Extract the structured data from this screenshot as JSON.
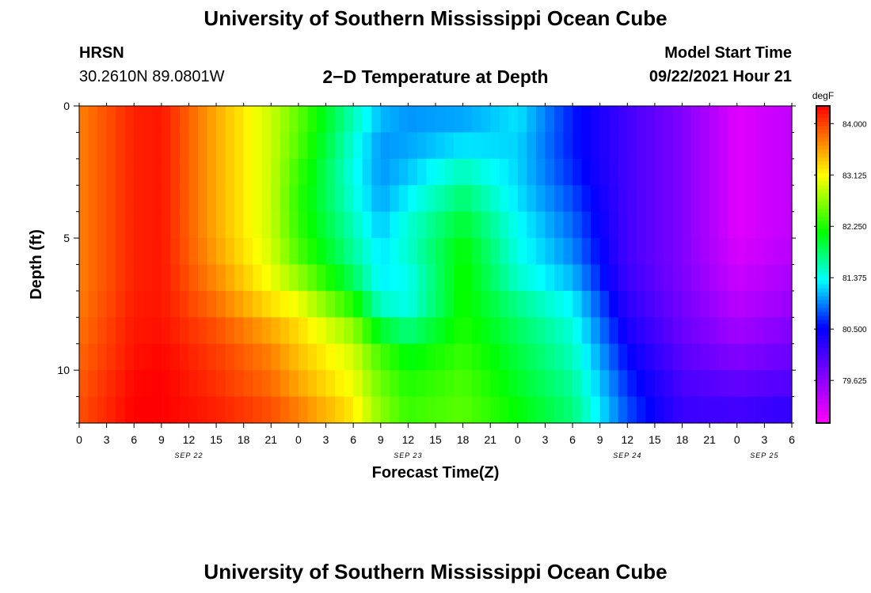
{
  "header": {
    "title": "University of Southern Mississippi Ocean Cube",
    "station": "HRSN",
    "coordinates": "30.2610N  89.0801W",
    "subtitle": "2−D Temperature at Depth",
    "model_start_label": "Model Start Time",
    "model_run": "09/22/2021 Hour 21"
  },
  "footer": {
    "title": "University of Southern Mississippi Ocean Cube"
  },
  "chart_data": {
    "type": "heatmap",
    "xlabel": "Forecast Time(Z)",
    "ylabel": "Depth (ft)",
    "x_hours_start": 0,
    "x_hours_end": 78,
    "y_range": [
      0,
      12
    ],
    "x_tick_labels": [
      "0",
      "3",
      "6",
      "9",
      "12",
      "15",
      "18",
      "21",
      "0",
      "3",
      "6",
      "9",
      "12",
      "15",
      "18",
      "21",
      "0",
      "3",
      "6",
      "9",
      "12",
      "15",
      "18",
      "21",
      "0",
      "3",
      "6"
    ],
    "y_tick_labels": [
      "0",
      "5",
      "10"
    ],
    "date_labels": [
      {
        "label": "SEP 22",
        "hour": 12
      },
      {
        "label": "SEP 23",
        "hour": 36
      },
      {
        "label": "SEP 24",
        "hour": 60
      },
      {
        "label": "SEP 25",
        "hour": 75
      }
    ],
    "colorbar": {
      "unit": "degF",
      "min": 78.9,
      "max": 84.3,
      "tick_values": [
        84.0,
        83.125,
        82.25,
        81.375,
        80.5,
        79.625
      ],
      "tick_labels": [
        "84.000",
        "83.125",
        "82.250",
        "81.375",
        "80.500",
        "79.625"
      ]
    },
    "depth_levels": [
      0,
      1,
      2,
      3,
      4,
      5,
      6,
      7,
      8,
      9,
      10,
      11,
      12
    ],
    "profile_hours": [
      0,
      6,
      9,
      15,
      21,
      24,
      30,
      33,
      36,
      42,
      48,
      54,
      60,
      66,
      72,
      78
    ],
    "temperature_profiles": [
      [
        83.7,
        83.7,
        83.7,
        83.7,
        83.7,
        83.7,
        83.7,
        83.7,
        83.75,
        83.8,
        83.85,
        83.9,
        83.95
      ],
      [
        84.15,
        84.15,
        84.15,
        84.15,
        84.15,
        84.15,
        84.15,
        84.15,
        84.2,
        84.2,
        84.25,
        84.3,
        84.3
      ],
      [
        84.2,
        84.2,
        84.2,
        84.2,
        84.2,
        84.2,
        84.2,
        84.2,
        84.2,
        84.25,
        84.3,
        84.3,
        84.3
      ],
      [
        83.5,
        83.5,
        83.5,
        83.5,
        83.5,
        83.5,
        83.6,
        83.7,
        83.85,
        84.0,
        84.05,
        84.1,
        84.2
      ],
      [
        82.9,
        82.9,
        82.9,
        82.9,
        82.9,
        82.9,
        83.0,
        83.1,
        83.4,
        83.65,
        83.75,
        83.85,
        84.0
      ],
      [
        82.5,
        82.5,
        82.4,
        82.3,
        82.3,
        82.35,
        82.5,
        82.9,
        83.2,
        83.35,
        83.45,
        83.6,
        83.8
      ],
      [
        81.6,
        81.5,
        81.4,
        81.4,
        81.5,
        81.6,
        81.7,
        82.0,
        82.5,
        82.9,
        83.0,
        83.1,
        83.3
      ],
      [
        81.2,
        81.0,
        81.0,
        81.0,
        81.1,
        81.2,
        81.3,
        81.3,
        81.7,
        82.3,
        82.5,
        82.6,
        82.7
      ],
      [
        81.0,
        81.0,
        81.1,
        81.2,
        81.4,
        81.5,
        81.45,
        81.3,
        81.5,
        82.0,
        82.2,
        82.3,
        82.4
      ],
      [
        81.0,
        81.1,
        81.4,
        81.7,
        81.9,
        82.1,
        82.2,
        82.2,
        82.2,
        82.3,
        82.4,
        82.45,
        82.5
      ],
      [
        81.3,
        81.2,
        81.2,
        81.2,
        81.3,
        81.4,
        81.4,
        81.6,
        81.8,
        81.9,
        82.0,
        82.05,
        82.2
      ],
      [
        80.6,
        80.6,
        80.6,
        80.7,
        80.8,
        80.9,
        81.0,
        81.2,
        81.4,
        81.5,
        81.6,
        81.7,
        81.8
      ],
      [
        80.1,
        80.1,
        80.1,
        80.1,
        80.1,
        80.1,
        80.1,
        80.2,
        80.3,
        80.45,
        80.6,
        80.7,
        80.8
      ],
      [
        79.7,
        79.7,
        79.7,
        79.7,
        79.7,
        79.7,
        79.7,
        79.75,
        79.8,
        79.9,
        80.0,
        80.1,
        80.2
      ],
      [
        79.1,
        79.1,
        79.1,
        79.1,
        79.1,
        79.1,
        79.2,
        79.3,
        79.4,
        79.6,
        79.8,
        80.0,
        80.2
      ],
      [
        79.3,
        79.3,
        79.3,
        79.3,
        79.3,
        79.3,
        79.4,
        79.5,
        79.6,
        79.8,
        79.9,
        80.1,
        80.3
      ]
    ]
  }
}
